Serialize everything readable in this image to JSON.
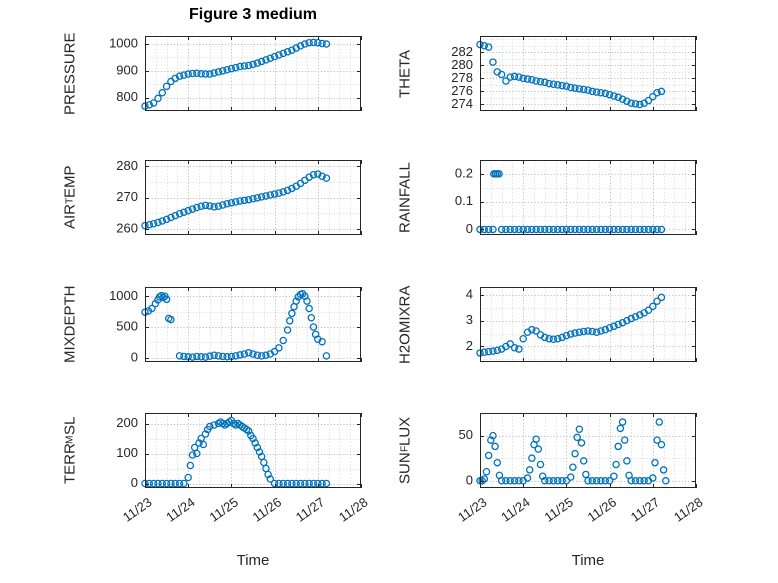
{
  "title": "Figure 3 medium",
  "x_axis": {
    "label": "Time",
    "lim": [
      0,
      5
    ],
    "tick_values": [
      0,
      1,
      2,
      3,
      4,
      5
    ],
    "tick_labels": [
      "11/23",
      "11/24",
      "11/25",
      "11/26",
      "11/27",
      "11/28"
    ],
    "minor_step": 0.25
  },
  "style": {
    "marker_color": "#0072BD",
    "axis_color": "#262626",
    "grid_color": "#c0c0c0",
    "minor_grid_color": "#dedede"
  },
  "chart_data": [
    {
      "type": "scatter",
      "ylabel": "PRESSURE",
      "yticks": [
        800,
        900,
        1000
      ],
      "ylim": [
        750,
        1030
      ],
      "show_x_tick_labels": false,
      "x": [
        0,
        0.1,
        0.2,
        0.3,
        0.4,
        0.5,
        0.6,
        0.7,
        0.8,
        0.9,
        1,
        1.1,
        1.2,
        1.3,
        1.4,
        1.5,
        1.6,
        1.7,
        1.8,
        1.9,
        2,
        2.1,
        2.2,
        2.3,
        2.4,
        2.5,
        2.6,
        2.7,
        2.8,
        2.9,
        3,
        3.1,
        3.2,
        3.3,
        3.4,
        3.5,
        3.6,
        3.7,
        3.8,
        3.9,
        4,
        4.1,
        4.2
      ],
      "y": [
        768,
        773,
        780,
        797,
        818,
        842,
        860,
        872,
        880,
        884,
        888,
        890,
        891,
        889,
        888,
        888,
        892,
        896,
        900,
        904,
        908,
        912,
        916,
        918,
        920,
        924,
        929,
        935,
        941,
        947,
        953,
        959,
        965,
        971,
        977,
        985,
        993,
        1000,
        1005,
        1006,
        1005,
        1002,
        1000
      ]
    },
    {
      "type": "scatter",
      "ylabel": "THETA",
      "yticks": [
        274,
        276,
        278,
        280,
        282
      ],
      "ylim": [
        273,
        284.5
      ],
      "show_x_tick_labels": false,
      "x": [
        0,
        0.1,
        0.2,
        0.3,
        0.4,
        0.5,
        0.6,
        0.7,
        0.8,
        0.9,
        1,
        1.1,
        1.2,
        1.3,
        1.4,
        1.5,
        1.6,
        1.7,
        1.8,
        1.9,
        2,
        2.1,
        2.2,
        2.3,
        2.4,
        2.5,
        2.6,
        2.7,
        2.8,
        2.9,
        3,
        3.1,
        3.2,
        3.3,
        3.4,
        3.5,
        3.6,
        3.7,
        3.8,
        3.9,
        4,
        4.1,
        4.2
      ],
      "y": [
        283.2,
        283,
        282.8,
        280.5,
        279,
        278.6,
        277.6,
        278.2,
        278.3,
        278.2,
        278,
        277.9,
        277.8,
        277.6,
        277.5,
        277.4,
        277.2,
        277.1,
        277,
        276.9,
        276.8,
        276.6,
        276.5,
        276.4,
        276.3,
        276.2,
        276,
        275.9,
        275.8,
        275.7,
        275.5,
        275.3,
        275.1,
        274.8,
        274.5,
        274.2,
        274.1,
        274,
        274.2,
        274.6,
        275.2,
        275.8,
        276
      ]
    },
    {
      "type": "scatter",
      "ylabel": "AIR_TEMP",
      "yticks": [
        260,
        270,
        280
      ],
      "ylim": [
        258,
        282
      ],
      "show_x_tick_labels": false,
      "x": [
        0,
        0.1,
        0.2,
        0.3,
        0.4,
        0.5,
        0.6,
        0.7,
        0.8,
        0.9,
        1,
        1.1,
        1.2,
        1.3,
        1.4,
        1.5,
        1.6,
        1.7,
        1.8,
        1.9,
        2,
        2.1,
        2.2,
        2.3,
        2.4,
        2.5,
        2.6,
        2.7,
        2.8,
        2.9,
        3,
        3.1,
        3.2,
        3.3,
        3.4,
        3.5,
        3.6,
        3.7,
        3.8,
        3.9,
        4,
        4.1,
        4.2
      ],
      "y": [
        261,
        261.3,
        261.6,
        262,
        262.5,
        263,
        263.6,
        264.2,
        264.8,
        265.3,
        265.8,
        266.3,
        266.8,
        267.2,
        267.5,
        267.3,
        267,
        267.2,
        267.6,
        268,
        268.3,
        268.6,
        268.9,
        269.1,
        269.3,
        269.6,
        269.9,
        270.2,
        270.5,
        270.8,
        271.1,
        271.4,
        271.8,
        272.3,
        272.9,
        273.6,
        274.5,
        275.5,
        276.5,
        277.3,
        277.5,
        276.8,
        276.2
      ]
    },
    {
      "type": "scatter",
      "ylabel": "RAINFALL",
      "yticks": [
        0,
        0.1,
        0.2
      ],
      "ylim": [
        -0.02,
        0.25
      ],
      "show_x_tick_labels": false,
      "x": [
        0,
        0.1,
        0.2,
        0.3,
        0.32,
        0.36,
        0.4,
        0.44,
        0.5,
        0.6,
        0.7,
        0.8,
        0.9,
        1,
        1.1,
        1.2,
        1.3,
        1.4,
        1.5,
        1.6,
        1.7,
        1.8,
        1.9,
        2,
        2.1,
        2.2,
        2.3,
        2.4,
        2.5,
        2.6,
        2.7,
        2.8,
        2.9,
        3,
        3.1,
        3.2,
        3.3,
        3.4,
        3.5,
        3.6,
        3.7,
        3.8,
        3.9,
        4,
        4.1,
        4.2
      ],
      "y": [
        0,
        0,
        0,
        0,
        0.2,
        0.2,
        0.2,
        0.2,
        0,
        0,
        0,
        0,
        0,
        0,
        0,
        0,
        0,
        0,
        0,
        0,
        0,
        0,
        0,
        0,
        0,
        0,
        0,
        0,
        0,
        0,
        0,
        0,
        0,
        0,
        0,
        0,
        0,
        0,
        0,
        0,
        0,
        0,
        0,
        0,
        0,
        0
      ]
    },
    {
      "type": "scatter",
      "ylabel": "MIXDEPTH",
      "yticks": [
        0,
        500,
        1000
      ],
      "ylim": [
        -70,
        1150
      ],
      "show_x_tick_labels": false,
      "x": [
        0,
        0.08,
        0.16,
        0.24,
        0.3,
        0.34,
        0.38,
        0.42,
        0.46,
        0.5,
        0.55,
        0.6,
        0.8,
        0.9,
        1,
        1.1,
        1.2,
        1.3,
        1.4,
        1.5,
        1.6,
        1.7,
        1.8,
        1.9,
        2,
        2.1,
        2.2,
        2.3,
        2.4,
        2.5,
        2.6,
        2.7,
        2.8,
        2.9,
        3,
        3.1,
        3.2,
        3.3,
        3.35,
        3.4,
        3.45,
        3.5,
        3.55,
        3.6,
        3.65,
        3.7,
        3.75,
        3.8,
        3.85,
        3.9,
        3.95,
        4,
        4.1,
        4.2
      ],
      "y": [
        740,
        760,
        800,
        880,
        940,
        990,
        1010,
        980,
        1000,
        950,
        640,
        620,
        30,
        20,
        15,
        10,
        20,
        15,
        10,
        25,
        40,
        30,
        20,
        15,
        20,
        30,
        45,
        60,
        80,
        60,
        40,
        30,
        40,
        60,
        100,
        160,
        280,
        450,
        600,
        720,
        830,
        920,
        990,
        1030,
        1040,
        1000,
        920,
        800,
        650,
        500,
        380,
        300,
        260,
        30
      ]
    },
    {
      "type": "scatter",
      "ylabel": "H2OMIXRA",
      "yticks": [
        2,
        3,
        4
      ],
      "ylim": [
        1.4,
        4.3
      ],
      "show_x_tick_labels": false,
      "x": [
        0,
        0.1,
        0.2,
        0.3,
        0.4,
        0.5,
        0.6,
        0.7,
        0.8,
        0.9,
        1,
        1.1,
        1.2,
        1.3,
        1.4,
        1.5,
        1.6,
        1.7,
        1.8,
        1.9,
        2,
        2.1,
        2.2,
        2.3,
        2.4,
        2.5,
        2.6,
        2.7,
        2.8,
        2.9,
        3,
        3.1,
        3.2,
        3.3,
        3.4,
        3.5,
        3.6,
        3.7,
        3.8,
        3.9,
        4,
        4.1,
        4.2
      ],
      "y": [
        1.75,
        1.78,
        1.8,
        1.82,
        1.85,
        1.9,
        2,
        2.1,
        1.95,
        1.9,
        2.3,
        2.55,
        2.65,
        2.6,
        2.45,
        2.35,
        2.3,
        2.28,
        2.3,
        2.35,
        2.42,
        2.48,
        2.52,
        2.55,
        2.58,
        2.6,
        2.58,
        2.55,
        2.6,
        2.65,
        2.72,
        2.78,
        2.85,
        2.92,
        3,
        3.08,
        3.15,
        3.22,
        3.3,
        3.4,
        3.55,
        3.75,
        3.9
      ]
    },
    {
      "type": "scatter",
      "ylabel": "TERR_MSL",
      "yticks": [
        0,
        100,
        200
      ],
      "ylim": [
        -15,
        235
      ],
      "show_x_tick_labels": true,
      "x": [
        0,
        0.1,
        0.2,
        0.3,
        0.4,
        0.5,
        0.6,
        0.7,
        0.8,
        0.9,
        1,
        1.05,
        1.1,
        1.15,
        1.2,
        1.25,
        1.3,
        1.35,
        1.4,
        1.45,
        1.5,
        1.6,
        1.7,
        1.75,
        1.8,
        1.85,
        1.9,
        1.95,
        2,
        2.05,
        2.1,
        2.15,
        2.2,
        2.25,
        2.3,
        2.35,
        2.4,
        2.45,
        2.5,
        2.55,
        2.6,
        2.65,
        2.7,
        2.75,
        2.8,
        2.85,
        2.9,
        3,
        3.1,
        3.2,
        3.3,
        3.4,
        3.5,
        3.6,
        3.7,
        3.8,
        3.9,
        4,
        4.1,
        4.2
      ],
      "y": [
        0,
        0,
        0,
        0,
        0,
        0,
        0,
        0,
        0,
        0,
        20,
        60,
        95,
        120,
        100,
        135,
        150,
        130,
        165,
        180,
        190,
        195,
        200,
        205,
        200,
        195,
        200,
        205,
        210,
        200,
        195,
        200,
        195,
        190,
        185,
        180,
        175,
        160,
        150,
        135,
        120,
        105,
        90,
        70,
        50,
        30,
        15,
        0,
        0,
        0,
        0,
        0,
        0,
        0,
        0,
        0,
        0,
        0,
        0,
        0
      ]
    },
    {
      "type": "scatter",
      "ylabel": "SUN_FLUX",
      "yticks": [
        0,
        50
      ],
      "ylim": [
        -8,
        75
      ],
      "show_x_tick_labels": true,
      "x": [
        0,
        0.05,
        0.1,
        0.15,
        0.2,
        0.25,
        0.3,
        0.35,
        0.4,
        0.45,
        0.5,
        0.6,
        0.7,
        0.8,
        0.9,
        1,
        1.1,
        1.15,
        1.2,
        1.25,
        1.3,
        1.35,
        1.4,
        1.45,
        1.5,
        1.6,
        1.7,
        1.8,
        1.9,
        2,
        2.1,
        2.15,
        2.2,
        2.25,
        2.3,
        2.35,
        2.4,
        2.45,
        2.5,
        2.6,
        2.7,
        2.8,
        2.9,
        3,
        3.1,
        3.15,
        3.2,
        3.25,
        3.3,
        3.35,
        3.4,
        3.45,
        3.5,
        3.6,
        3.7,
        3.8,
        3.9,
        4,
        4.05,
        4.1,
        4.15,
        4.2,
        4.25,
        4.3
      ],
      "y": [
        0,
        0,
        2,
        10,
        28,
        45,
        50,
        38,
        20,
        6,
        0,
        0,
        0,
        0,
        0,
        0,
        3,
        12,
        25,
        40,
        46,
        35,
        18,
        5,
        0,
        0,
        0,
        0,
        0,
        0,
        4,
        15,
        30,
        48,
        57,
        42,
        22,
        7,
        0,
        0,
        0,
        0,
        0,
        0,
        5,
        18,
        38,
        58,
        65,
        45,
        22,
        6,
        0,
        0,
        0,
        0,
        0,
        3,
        20,
        45,
        65,
        40,
        12,
        0
      ]
    }
  ]
}
